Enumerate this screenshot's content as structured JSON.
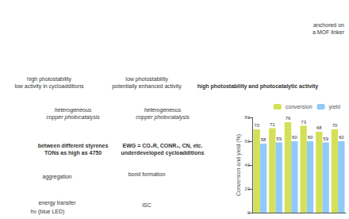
{
  "chart_data": {
    "type": "bar",
    "categories": [
      null,
      null,
      null,
      null,
      null,
      null
    ],
    "series": [
      {
        "name": "conversion",
        "color": "#d4e157",
        "values": [
          70,
          71,
          76,
          73,
          68,
          70
        ]
      },
      {
        "name": "yield",
        "color": "#90caf9",
        "values": [
          58,
          59,
          60,
          60,
          59,
          60
        ]
      }
    ],
    "ylabel": "Conversion and yield (%)",
    "ylim": [
      0,
      80
    ],
    "yticks": [
      0,
      20,
      40,
      60,
      80
    ],
    "grid": false,
    "legend": "upper right",
    "data_labels": true,
    "tick_labels": "y",
    "annotations": [
      "anchored on\na MOF linker",
      "high photostability\nlow activity in cycloadditions",
      "low photostability\npotentially enhanced activity",
      "high photostability and photocatalytic activity",
      "heterogeneous\ncopper photocatalysis",
      "heterogeneous\ncopper photocatalysis",
      "between different styrenes\nTONs as high as 4750",
      "EWG = CO₂R, CONR₂, CN, etc.\nunderdeveloped cycloadditions",
      "aggregation",
      "energy transfer",
      "hν (blue LED)",
      "bond formation",
      "ISC"
    ]
  }
}
